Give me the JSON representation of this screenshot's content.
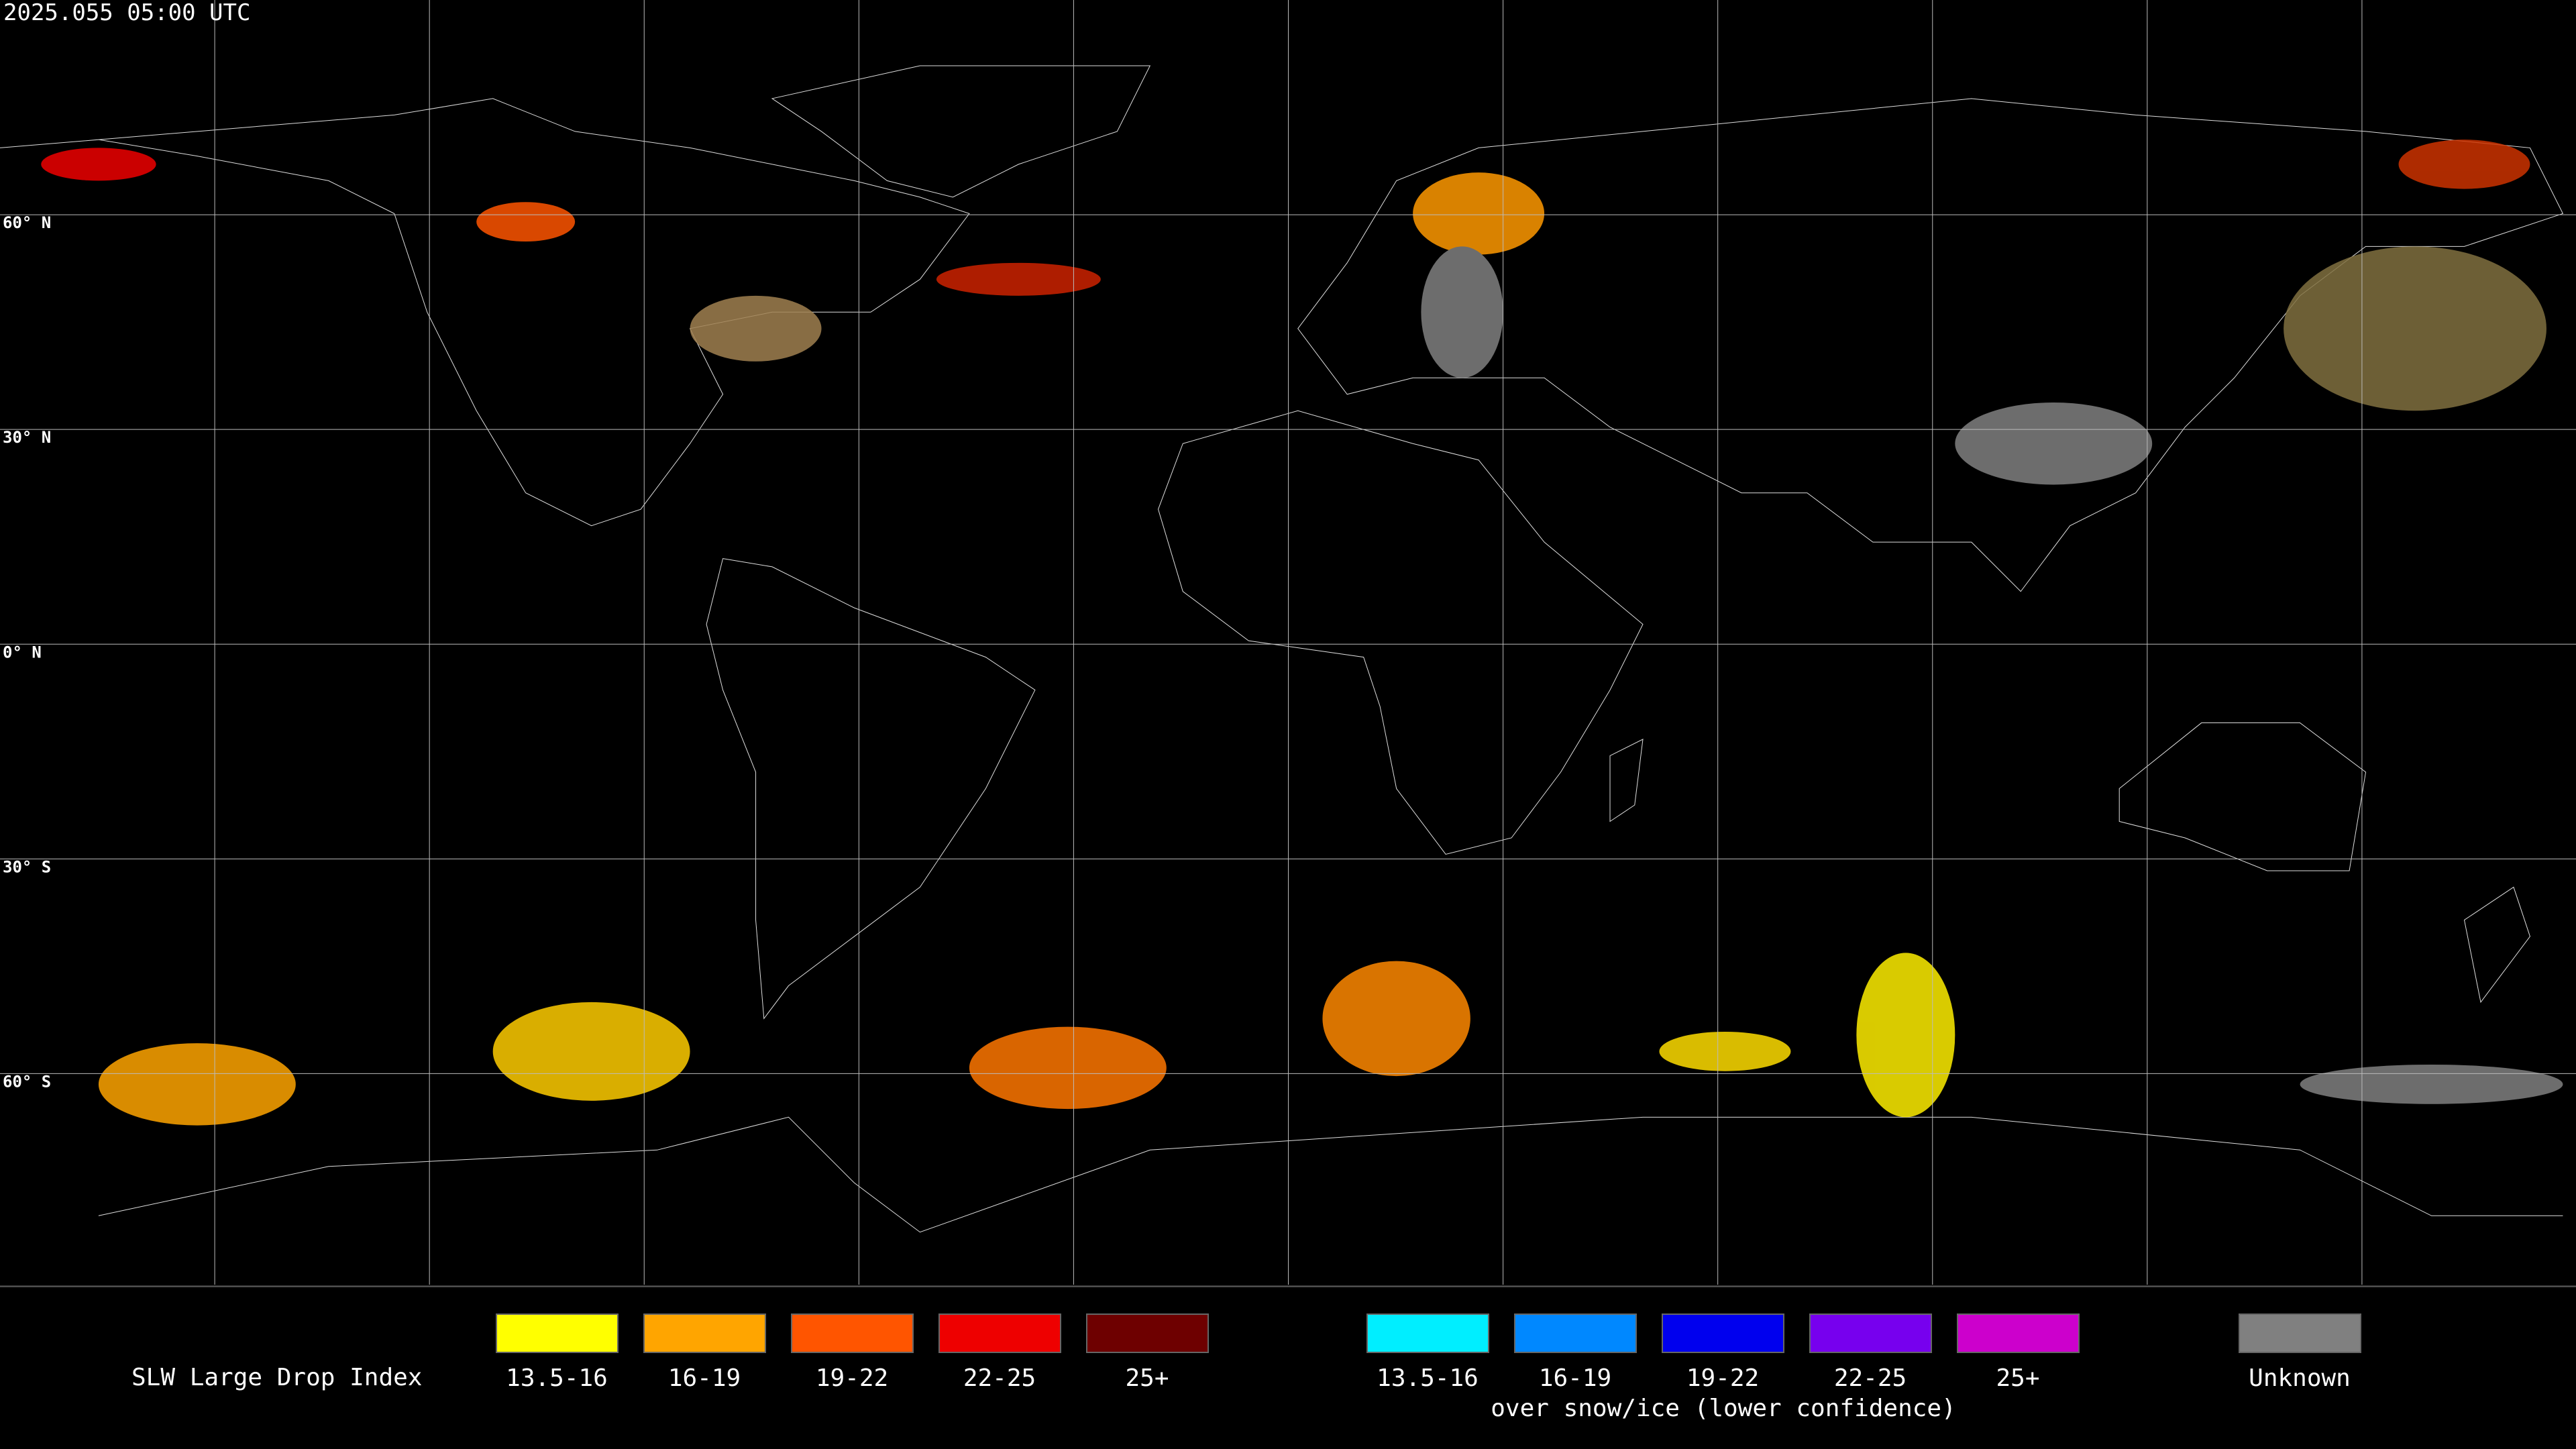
{
  "header": {
    "timestamp": "2025.055 05:00 UTC"
  },
  "map": {
    "latitude_labels": [
      "60° N",
      "30° N",
      "0° N",
      "30° S",
      "60° S"
    ]
  },
  "legend": {
    "title": "SLW Large Drop Index",
    "groups": [
      {
        "items": [
          {
            "label": "13.5-16",
            "color": "#ffff00"
          },
          {
            "label": "16-19",
            "color": "#ffa500"
          },
          {
            "label": "19-22",
            "color": "#ff5500"
          },
          {
            "label": "22-25",
            "color": "#ee0000"
          },
          {
            "label": "25+",
            "color": "#6e0000"
          }
        ]
      },
      {
        "items": [
          {
            "label": "13.5-16",
            "color": "#00eeff"
          },
          {
            "label": "16-19",
            "color": "#0088ff"
          },
          {
            "label": "19-22",
            "color": "#0000ee"
          },
          {
            "label": "22-25",
            "color": "#7700ee"
          },
          {
            "label": "25+",
            "color": "#cc00cc"
          }
        ],
        "note": "over snow/ice (lower confidence)"
      }
    ],
    "unknown": {
      "label": "Unknown",
      "color": "#808080"
    }
  }
}
